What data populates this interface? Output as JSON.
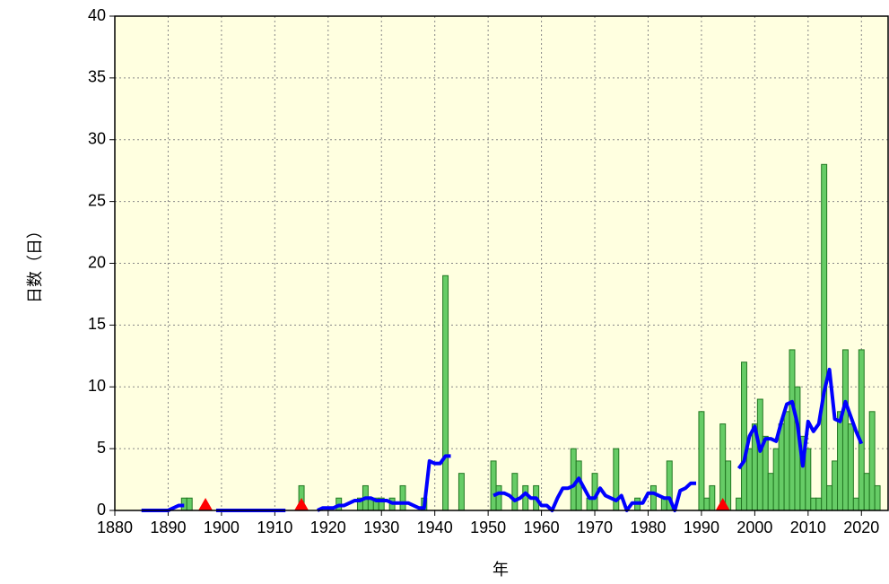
{
  "chart_data": {
    "type": "bar",
    "ylabel": "日数（日）",
    "xlabel": "年",
    "xlim": [
      1880,
      2025
    ],
    "xticks": [
      1880,
      1890,
      1900,
      1910,
      1920,
      1930,
      1940,
      1950,
      1960,
      1970,
      1980,
      1990,
      2000,
      2010,
      2020
    ],
    "ylim": [
      0,
      40
    ],
    "yticks": [
      0,
      5,
      10,
      15,
      20,
      25,
      30,
      35,
      40
    ],
    "grid": true,
    "background": "#ffffe0",
    "bars": {
      "color": "#66cc66",
      "edge": "#227722",
      "x": [
        1893,
        1894,
        1915,
        1922,
        1926,
        1927,
        1928,
        1929,
        1930,
        1932,
        1934,
        1938,
        1942,
        1945,
        1951,
        1952,
        1955,
        1957,
        1959,
        1966,
        1967,
        1969,
        1970,
        1974,
        1978,
        1981,
        1983,
        1984,
        1990,
        1991,
        1992,
        1994,
        1995,
        1997,
        1998,
        1999,
        2000,
        2001,
        2002,
        2003,
        2004,
        2005,
        2006,
        2007,
        2008,
        2009,
        2010,
        2011,
        2012,
        2013,
        2014,
        2015,
        2016,
        2017,
        2018,
        2019,
        2020,
        2021,
        2022,
        2023
      ],
      "values": [
        1,
        1,
        2,
        1,
        1,
        2,
        1,
        1,
        1,
        1,
        2,
        1,
        19,
        3,
        4,
        2,
        3,
        2,
        2,
        5,
        4,
        1,
        3,
        5,
        1,
        2,
        1,
        4,
        8,
        1,
        2,
        7,
        4,
        1,
        12,
        5,
        7,
        9,
        6,
        3,
        5,
        7,
        8,
        13,
        10,
        6,
        5,
        1,
        1,
        28,
        2,
        4,
        8,
        13,
        7,
        1,
        13,
        3,
        8,
        2
      ]
    },
    "line": {
      "color": "#0000ff",
      "x": [
        1885,
        1886,
        1887,
        1888,
        1889,
        1890,
        1891,
        1892,
        1893,
        1895,
        1899,
        1900,
        1901,
        1902,
        1903,
        1904,
        1905,
        1906,
        1907,
        1908,
        1909,
        1910,
        1911,
        1912,
        1913,
        1918,
        1919,
        1920,
        1921,
        1922,
        1923,
        1924,
        1925,
        1926,
        1927,
        1928,
        1929,
        1930,
        1931,
        1932,
        1933,
        1934,
        1935,
        1936,
        1937,
        1938,
        1939,
        1940,
        1941,
        1942,
        1943,
        1944,
        1951,
        1952,
        1953,
        1954,
        1955,
        1956,
        1957,
        1958,
        1959,
        1960,
        1961,
        1962,
        1963,
        1964,
        1965,
        1966,
        1967,
        1968,
        1969,
        1970,
        1971,
        1972,
        1973,
        1974,
        1975,
        1976,
        1977,
        1978,
        1979,
        1980,
        1981,
        1982,
        1983,
        1984,
        1985,
        1986,
        1987,
        1988,
        1989,
        1990,
        1997,
        1998,
        1999,
        2000,
        2001,
        2002,
        2003,
        2004,
        2005,
        2006,
        2007,
        2008,
        2009,
        2010,
        2011,
        2012,
        2013,
        2014,
        2015,
        2016,
        2017,
        2018,
        2019,
        2020
      ],
      "values": [
        0,
        0,
        0,
        0,
        0,
        0,
        0.2,
        0.4,
        0.4,
        null,
        0,
        0,
        0,
        0,
        0,
        0,
        0,
        0,
        0,
        0,
        0,
        0,
        0,
        0,
        null,
        0,
        0.2,
        0.2,
        0.2,
        0.4,
        0.4,
        0.6,
        0.8,
        0.8,
        1,
        1,
        0.8,
        0.8,
        0.8,
        0.6,
        0.6,
        0.6,
        0.6,
        0.4,
        0.2,
        0.2,
        4,
        3.8,
        3.8,
        4.4,
        4.4,
        null,
        1.2,
        1.4,
        1.4,
        1.2,
        0.8,
        1,
        1.4,
        1,
        1,
        0.4,
        0.4,
        0,
        1,
        1.8,
        1.8,
        2,
        2.6,
        1.8,
        1,
        1,
        1.8,
        1.2,
        1,
        0.8,
        1.2,
        0,
        0.6,
        0.6,
        0.6,
        1.4,
        1.4,
        1.2,
        1,
        1,
        0,
        1.6,
        1.8,
        2.2,
        2.2,
        null,
        3.4,
        4,
        6,
        6.8,
        4.8,
        5.8,
        5.8,
        5.6,
        7.2,
        8.6,
        8.8,
        7,
        3.6,
        7.2,
        6.4,
        7,
        9.6,
        11.4,
        7.4,
        7.2,
        8.8,
        7.6,
        6.4,
        5.4
      ]
    },
    "markers": {
      "color": "#ff0000",
      "x": [
        1897,
        1915,
        1994
      ]
    }
  }
}
